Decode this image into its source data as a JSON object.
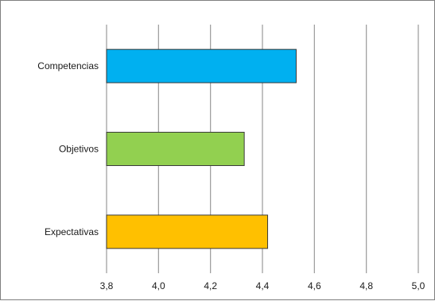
{
  "chart_data": {
    "type": "bar",
    "orientation": "horizontal",
    "categories": [
      "Competencias",
      "Objetivos",
      "Expectativas"
    ],
    "values": [
      4.53,
      4.33,
      4.42
    ],
    "colors": [
      "#00B0F0",
      "#92D050",
      "#FFC000"
    ],
    "xlim": [
      3.8,
      5.0
    ],
    "xticks": [
      "3,8",
      "4,0",
      "4,2",
      "4,4",
      "4,6",
      "4,8",
      "5,0"
    ],
    "grid": true,
    "legend": "none"
  }
}
